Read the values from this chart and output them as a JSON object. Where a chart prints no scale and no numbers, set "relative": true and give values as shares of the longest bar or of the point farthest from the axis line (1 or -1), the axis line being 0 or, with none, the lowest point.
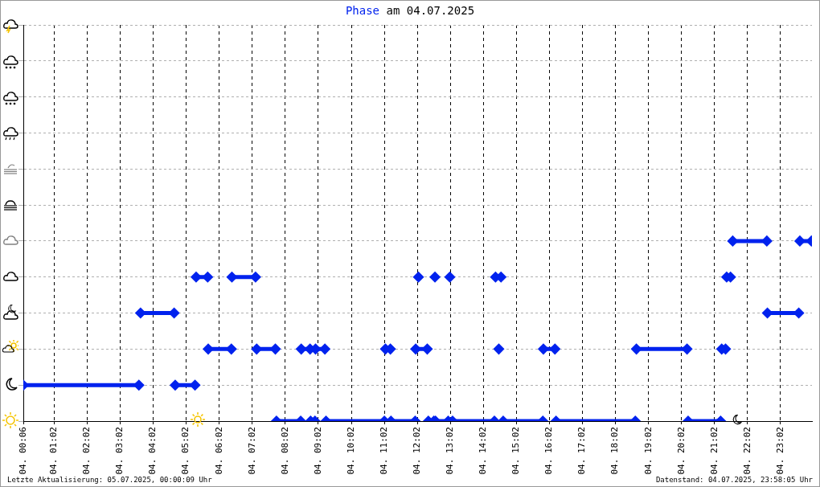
{
  "chart_data": {
    "type": "line",
    "title": "Phase am 04.07.2025",
    "annotations": [
      "Letzte Aktualisierung: 05.07.2025, 00:00:09 Uhr",
      "Datenstand: 04.07.2025, 23:58:05 Uhr"
    ],
    "series": [
      {
        "color": "#0022ee",
        "x": [
          "2025-07-04T00:06",
          "2025-07-04T03:36",
          null,
          "2025-07-04T03:39",
          "2025-07-04T04:40",
          null,
          "2025-07-04T04:42",
          "2025-07-04T05:18",
          null,
          "2025-07-04T05:20",
          "2025-07-04T05:41",
          null,
          "2025-07-04T05:42",
          "2025-07-04T06:24",
          null,
          "2025-07-04T06:25",
          "2025-07-04T07:08",
          null,
          "2025-07-04T07:10",
          "2025-07-04T07:44",
          null,
          "2025-07-04T07:46",
          "2025-07-04T08:30",
          null,
          "2025-07-04T08:31",
          "2025-07-04T08:47",
          null,
          "2025-07-04T08:48",
          "2025-07-04T08:56",
          null,
          "2025-07-04T08:57",
          "2025-07-04T09:14",
          null,
          "2025-07-04T09:16",
          "2025-07-04T11:02",
          null,
          "2025-07-04T11:04",
          "2025-07-04T11:13",
          null,
          "2025-07-04T11:14",
          "2025-07-04T11:58",
          null,
          "2025-07-04T11:59",
          "2025-07-04T12:20",
          null,
          "2025-07-04T12:04",
          null,
          "2025-07-04T12:22",
          "2025-07-04T12:32",
          null,
          "2025-07-04T12:34",
          null,
          "2025-07-04T12:35",
          "2025-07-04T12:58",
          null,
          "2025-07-04T13:01",
          null,
          "2025-07-04T13:06",
          "2025-07-04T14:22",
          null,
          "2025-07-04T14:24",
          "2025-07-04T14:34",
          null,
          "2025-07-04T14:30",
          null,
          "2025-07-04T14:38",
          "2025-07-04T15:50",
          null,
          "2025-07-04T15:51",
          "2025-07-04T16:12",
          null,
          "2025-07-04T16:14",
          "2025-07-04T18:38",
          null,
          "2025-07-04T18:40",
          "2025-07-04T20:12",
          null,
          "2025-07-04T20:14",
          "2025-07-04T21:13",
          null,
          "2025-07-04T21:15",
          "2025-07-04T21:22",
          null,
          "2025-07-04T21:24",
          "2025-07-04T21:31",
          null,
          "2025-07-04T21:35",
          "2025-07-04T22:37",
          null,
          "2025-07-04T22:38",
          "2025-07-04T23:35",
          null,
          "2025-07-04T23:37",
          "2025-07-04T23:58"
        ],
        "values": [
          0.2,
          0.2,
          null,
          0.6,
          0.6,
          null,
          0.2,
          0.2,
          null,
          0.8,
          0.8,
          null,
          0.4,
          0.4,
          null,
          0.8,
          0.8,
          null,
          0.4,
          0.4,
          null,
          0,
          0,
          null,
          0.4,
          0.4,
          null,
          0,
          0,
          null,
          0.4,
          0.4,
          null,
          0,
          0,
          null,
          0.4,
          0.4,
          null,
          0,
          0,
          null,
          0.4,
          0.4,
          null,
          0.8,
          null,
          0,
          0,
          null,
          0.8,
          null,
          0,
          0,
          null,
          0.8,
          null,
          0,
          0,
          null,
          0.8,
          0.8,
          null,
          0.4,
          null,
          0,
          0,
          null,
          0.4,
          0.4,
          null,
          0,
          0,
          null,
          0.4,
          0.4,
          null,
          0,
          0,
          null,
          0.4,
          0.4,
          null,
          0.8,
          0.8,
          null,
          1,
          1,
          null,
          0.6,
          0.6,
          null,
          1,
          1
        ]
      }
    ],
    "relative": true,
    "xlim": [
      "2025-07-04T00:06",
      "2025-07-04T23:59"
    ],
    "xticks": [
      {
        "value": "2025-07-04T00:06",
        "label": "04. 00:06"
      },
      {
        "value": "2025-07-04T01:02",
        "label": "04. 01:02"
      },
      {
        "value": "2025-07-04T02:02",
        "label": "04. 02:02"
      },
      {
        "value": "2025-07-04T03:02",
        "label": "04. 03:02"
      },
      {
        "value": "2025-07-04T04:02",
        "label": "04. 04:02"
      },
      {
        "value": "2025-07-04T05:02",
        "label": "04. 05:02"
      },
      {
        "value": "2025-07-04T06:02",
        "label": "04. 06:02"
      },
      {
        "value": "2025-07-04T07:02",
        "label": "04. 07:02"
      },
      {
        "value": "2025-07-04T08:02",
        "label": "04. 08:02"
      },
      {
        "value": "2025-07-04T09:02",
        "label": "04. 09:02"
      },
      {
        "value": "2025-07-04T10:02",
        "label": "04. 10:02"
      },
      {
        "value": "2025-07-04T11:02",
        "label": "04. 11:02"
      },
      {
        "value": "2025-07-04T12:02",
        "label": "04. 12:02"
      },
      {
        "value": "2025-07-04T13:02",
        "label": "04. 13:02"
      },
      {
        "value": "2025-07-04T14:02",
        "label": "04. 14:02"
      },
      {
        "value": "2025-07-04T15:02",
        "label": "04. 15:02"
      },
      {
        "value": "2025-07-04T16:02",
        "label": "04. 16:02"
      },
      {
        "value": "2025-07-04T17:02",
        "label": "04. 17:02"
      },
      {
        "value": "2025-07-04T18:02",
        "label": "04. 18:02"
      },
      {
        "value": "2025-07-04T19:02",
        "label": "04. 19:02"
      },
      {
        "value": "2025-07-04T20:02",
        "label": "04. 20:02"
      },
      {
        "value": "2025-07-04T21:02",
        "label": "04. 21:02"
      },
      {
        "value": "2025-07-04T22:02",
        "label": "04. 22:02"
      },
      {
        "value": "2025-07-04T23:02",
        "label": "04. 23:02"
      }
    ],
    "grid": true,
    "legend": false,
    "marker": "diamond",
    "line_style": "solid"
  }
}
